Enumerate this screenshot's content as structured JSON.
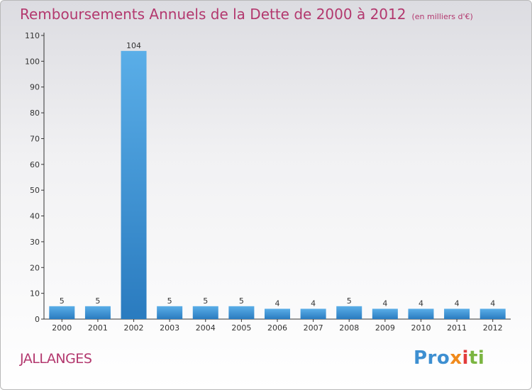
{
  "chart_data": {
    "type": "bar",
    "title": "Remboursements Annuels de la Dette de 2000 à 2012",
    "unit_note": "(en milliers d'€)",
    "categories": [
      "2000",
      "2001",
      "2002",
      "2003",
      "2004",
      "2005",
      "2006",
      "2007",
      "2008",
      "2009",
      "2010",
      "2011",
      "2012"
    ],
    "values": [
      5,
      5,
      104,
      5,
      5,
      5,
      4,
      4,
      5,
      4,
      4,
      4,
      4
    ],
    "ylim": [
      0,
      110
    ],
    "yticks": [
      0,
      10,
      20,
      30,
      40,
      50,
      60,
      70,
      80,
      90,
      100,
      110
    ],
    "xlabel": "",
    "ylabel": "",
    "grid": false,
    "bar_color_top": "#5aaee8",
    "bar_color_bottom": "#2a7bbf"
  },
  "footer": {
    "place": "JALLANGES",
    "logo": [
      "Pro",
      "x",
      "i",
      "ti"
    ]
  }
}
